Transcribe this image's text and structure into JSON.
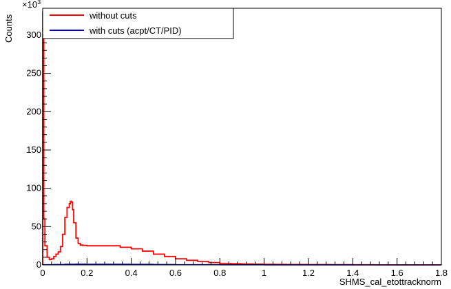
{
  "chart_data": {
    "type": "line",
    "title": "",
    "xlabel": "SHMS_cal_etottracknorm",
    "ylabel": "Counts",
    "y_multiplier_base": "×10",
    "y_multiplier_exp": "3",
    "xlim": [
      0,
      1.8
    ],
    "ylim": [
      0,
      335
    ],
    "x_ticks": [
      0,
      0.2,
      0.4,
      0.6,
      0.8,
      1,
      1.2,
      1.4,
      1.6,
      1.8
    ],
    "x_tick_labels": [
      "0",
      "0.2",
      "0.4",
      "0.6",
      "0.8",
      "1",
      "1.2",
      "1.4",
      "1.6",
      "1.8"
    ],
    "y_ticks": [
      0,
      50,
      100,
      150,
      200,
      250,
      300
    ],
    "y_tick_labels": [
      "0",
      "50",
      "100",
      "150",
      "200",
      "250",
      "300"
    ],
    "legend_position": "top-left",
    "series": [
      {
        "name": "without cuts",
        "color": "#ff0000",
        "step": true,
        "x": [
          0,
          0.005,
          0.01,
          0.02,
          0.03,
          0.04,
          0.05,
          0.06,
          0.07,
          0.08,
          0.09,
          0.1,
          0.11,
          0.12,
          0.125,
          0.13,
          0.135,
          0.14,
          0.15,
          0.16,
          0.17,
          0.18,
          0.2,
          0.25,
          0.3,
          0.35,
          0.4,
          0.45,
          0.5,
          0.55,
          0.6,
          0.65,
          0.7,
          0.75,
          0.8,
          0.85,
          0.9,
          0.95,
          1,
          1.05,
          1.1,
          1.2,
          1.3,
          1.4,
          1.5,
          1.6,
          1.7,
          1.8
        ],
        "y": [
          330,
          60,
          25,
          10,
          7,
          8,
          11,
          14,
          17,
          24,
          40,
          62,
          75,
          80,
          83,
          82,
          72,
          55,
          35,
          28,
          26,
          25.5,
          25,
          25,
          25,
          23,
          21,
          18,
          14,
          11,
          8,
          6,
          4.5,
          3,
          2,
          1.5,
          1.2,
          1,
          0.8,
          0.6,
          0.5,
          0.4,
          0.3,
          0.2,
          0.1,
          0.1,
          0.1,
          0
        ]
      },
      {
        "name": "with cuts (acpt/CT/PID)",
        "color": "#0000cc",
        "step": true,
        "x": [
          0,
          0.05,
          0.1,
          0.15,
          0.2,
          0.3,
          0.4,
          0.5,
          0.6,
          0.8,
          1,
          1.2,
          1.4,
          1.6,
          1.8
        ],
        "y": [
          0.3,
          0.5,
          0.8,
          1.0,
          0.9,
          0.8,
          0.7,
          0.5,
          0.3,
          0.2,
          0.1,
          0.1,
          0,
          0,
          0
        ]
      }
    ]
  }
}
